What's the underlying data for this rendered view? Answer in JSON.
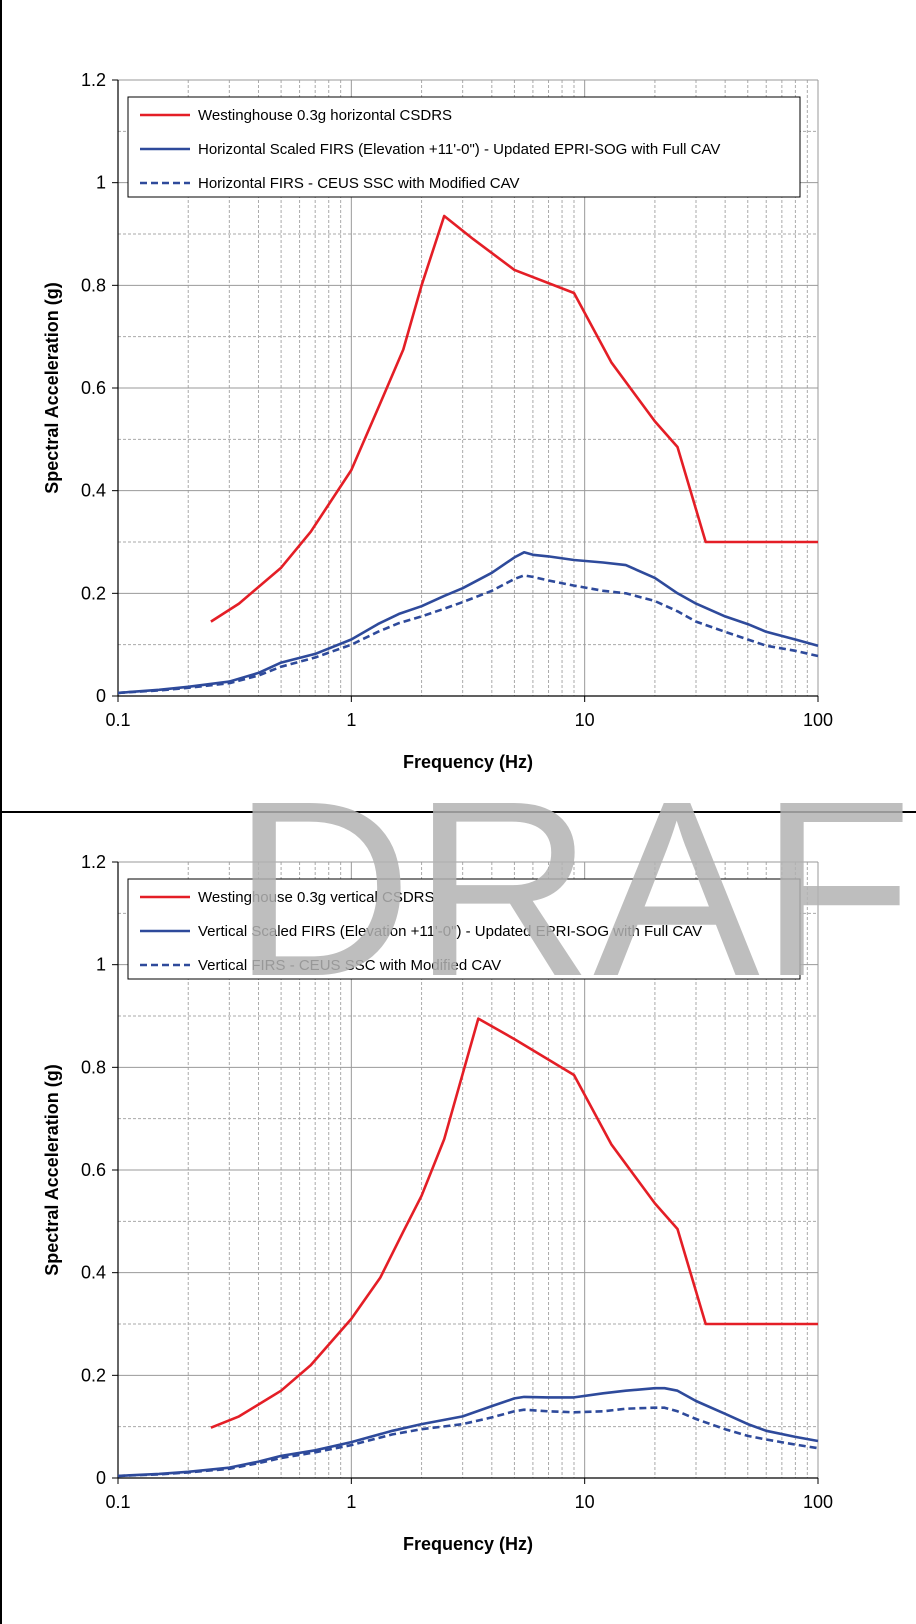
{
  "watermark": "DRAFT",
  "colors": {
    "red": "#e41e26",
    "blue": "#2e4a9b",
    "grid_major": "#999999",
    "grid_minor": "#aaaaaa"
  },
  "chart_data": [
    {
      "type": "line",
      "xscale": "log",
      "xlim": [
        0.1,
        100
      ],
      "ylim": [
        0,
        1.2
      ],
      "xticks": [
        "0.1",
        "1",
        "10",
        "100"
      ],
      "yticks": [
        "0",
        "0.2",
        "0.4",
        "0.6",
        "0.8",
        "1",
        "1.2"
      ],
      "xlabel": "Frequency (Hz)",
      "ylabel": "Spectral Acceleration (g)",
      "grid": true,
      "legend": "top-left",
      "series": [
        {
          "name": "Westinghouse 0.3g horizontal CSDRS",
          "color": "#e41e26",
          "style": "solid",
          "x": [
            0.25,
            0.33,
            0.5,
            0.67,
            1,
            1.33,
            1.67,
            2,
            2.5,
            3.33,
            5,
            9,
            13,
            20,
            25,
            33,
            50,
            100
          ],
          "y": [
            0.145,
            0.18,
            0.25,
            0.32,
            0.44,
            0.57,
            0.675,
            0.8,
            0.935,
            0.89,
            0.83,
            0.785,
            0.65,
            0.535,
            0.485,
            0.3,
            0.3,
            0.3
          ]
        },
        {
          "name": "Horizontal Scaled FIRS (Elevation +11'-0\") - Updated EPRI-SOG with Full CAV",
          "color": "#2e4a9b",
          "style": "solid",
          "x": [
            0.1,
            0.15,
            0.2,
            0.3,
            0.4,
            0.5,
            0.7,
            1,
            1.3,
            1.6,
            2,
            2.5,
            3,
            4,
            5,
            5.5,
            6,
            7,
            9,
            12,
            15,
            20,
            25,
            30,
            40,
            50,
            60,
            80,
            100
          ],
          "y": [
            0.006,
            0.012,
            0.018,
            0.028,
            0.045,
            0.065,
            0.082,
            0.11,
            0.14,
            0.16,
            0.175,
            0.195,
            0.21,
            0.24,
            0.27,
            0.28,
            0.275,
            0.272,
            0.265,
            0.26,
            0.255,
            0.23,
            0.2,
            0.18,
            0.155,
            0.14,
            0.125,
            0.11,
            0.098
          ]
        },
        {
          "name": "Horizontal FIRS - CEUS SSC with Modified CAV",
          "color": "#2e4a9b",
          "style": "dashed",
          "x": [
            0.1,
            0.15,
            0.2,
            0.3,
            0.4,
            0.5,
            0.7,
            1,
            1.3,
            1.6,
            2,
            2.5,
            3,
            4,
            5,
            5.5,
            6,
            7,
            9,
            12,
            15,
            20,
            25,
            30,
            40,
            50,
            60,
            80,
            100
          ],
          "y": [
            0.006,
            0.011,
            0.016,
            0.025,
            0.04,
            0.057,
            0.075,
            0.1,
            0.125,
            0.142,
            0.155,
            0.17,
            0.183,
            0.205,
            0.228,
            0.235,
            0.232,
            0.225,
            0.215,
            0.205,
            0.2,
            0.185,
            0.165,
            0.145,
            0.125,
            0.11,
            0.098,
            0.088,
            0.078
          ]
        }
      ]
    },
    {
      "type": "line",
      "xscale": "log",
      "xlim": [
        0.1,
        100
      ],
      "ylim": [
        0,
        1.2
      ],
      "xticks": [
        "0.1",
        "1",
        "10",
        "100"
      ],
      "yticks": [
        "0",
        "0.2",
        "0.4",
        "0.6",
        "0.8",
        "1",
        "1.2"
      ],
      "xlabel": "Frequency (Hz)",
      "ylabel": "Spectral Acceleration (g)",
      "grid": true,
      "legend": "top-left",
      "series": [
        {
          "name": "Westinghouse 0.3g vertical CSDRS",
          "color": "#e41e26",
          "style": "solid",
          "x": [
            0.25,
            0.33,
            0.5,
            0.67,
            1,
            1.33,
            1.67,
            2,
            2.5,
            3.5,
            5,
            9,
            13,
            20,
            25,
            33,
            50,
            100
          ],
          "y": [
            0.098,
            0.12,
            0.17,
            0.22,
            0.31,
            0.39,
            0.48,
            0.55,
            0.66,
            0.895,
            0.855,
            0.785,
            0.65,
            0.535,
            0.485,
            0.3,
            0.3,
            0.3
          ]
        },
        {
          "name": "Vertical Scaled FIRS (Elevation +11'-0\") - Updated EPRI-SOG with Full CAV",
          "color": "#2e4a9b",
          "style": "solid",
          "x": [
            0.1,
            0.15,
            0.2,
            0.3,
            0.4,
            0.5,
            0.7,
            1,
            1.5,
            2,
            3,
            4,
            5,
            5.5,
            7,
            9,
            12,
            15,
            20,
            22,
            25,
            30,
            40,
            50,
            60,
            80,
            100
          ],
          "y": [
            0.004,
            0.008,
            0.012,
            0.02,
            0.032,
            0.043,
            0.054,
            0.07,
            0.092,
            0.105,
            0.12,
            0.14,
            0.155,
            0.158,
            0.157,
            0.157,
            0.165,
            0.17,
            0.175,
            0.175,
            0.17,
            0.15,
            0.125,
            0.105,
            0.092,
            0.08,
            0.072
          ]
        },
        {
          "name": "Vertical FIRS - CEUS SSC with Modified CAV",
          "color": "#2e4a9b",
          "style": "dashed",
          "x": [
            0.1,
            0.15,
            0.2,
            0.3,
            0.4,
            0.5,
            0.7,
            1,
            1.5,
            2,
            3,
            4,
            5,
            5.5,
            7,
            9,
            12,
            15,
            20,
            22,
            25,
            30,
            40,
            50,
            60,
            80,
            100
          ],
          "y": [
            0.004,
            0.007,
            0.011,
            0.018,
            0.029,
            0.039,
            0.05,
            0.064,
            0.085,
            0.095,
            0.105,
            0.118,
            0.13,
            0.133,
            0.13,
            0.128,
            0.13,
            0.135,
            0.137,
            0.137,
            0.13,
            0.115,
            0.095,
            0.082,
            0.075,
            0.065,
            0.058
          ]
        }
      ]
    }
  ]
}
